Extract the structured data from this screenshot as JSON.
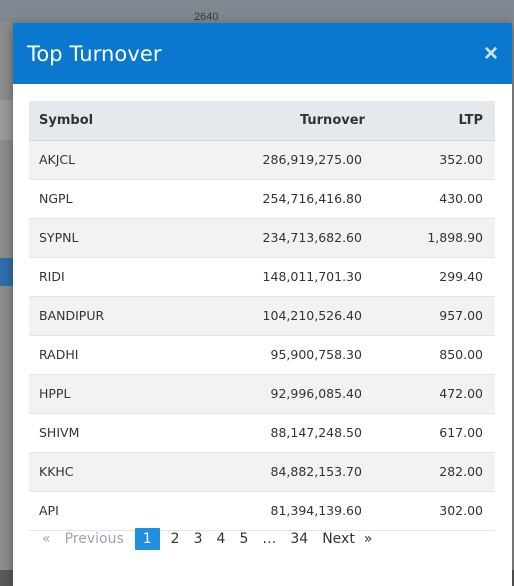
{
  "background": {
    "chart_tick_label": "2640"
  },
  "modal": {
    "title": "Top Turnover",
    "close_label": "×",
    "columns": [
      "Symbol",
      "Turnover",
      "LTP"
    ],
    "rows": [
      {
        "symbol": "AKJCL",
        "turnover": "286,919,275.00",
        "ltp": "352.00"
      },
      {
        "symbol": "NGPL",
        "turnover": "254,716,416.80",
        "ltp": "430.00"
      },
      {
        "symbol": "SYPNL",
        "turnover": "234,713,682.60",
        "ltp": "1,898.90"
      },
      {
        "symbol": "RIDI",
        "turnover": "148,011,701.30",
        "ltp": "299.40"
      },
      {
        "symbol": "BANDIPUR",
        "turnover": "104,210,526.40",
        "ltp": "957.00"
      },
      {
        "symbol": "RADHI",
        "turnover": "95,900,758.30",
        "ltp": "850.00"
      },
      {
        "symbol": "HPPL",
        "turnover": "92,996,085.40",
        "ltp": "472.00"
      },
      {
        "symbol": "SHIVM",
        "turnover": "88,147,248.50",
        "ltp": "617.00"
      },
      {
        "symbol": "KKHC",
        "turnover": "84,882,153.70",
        "ltp": "282.00"
      },
      {
        "symbol": "API",
        "turnover": "81,394,139.60",
        "ltp": "302.00"
      }
    ],
    "pagination": {
      "prev_arrow": "«",
      "prev_label": "Previous",
      "pages": [
        "1",
        "2",
        "3",
        "4",
        "5",
        "…",
        "34"
      ],
      "current_page": "1",
      "next_label": "Next",
      "next_arrow": "»"
    }
  },
  "colors": {
    "header_blue": "#0b78d0",
    "active_page": "#1f8fe0"
  }
}
